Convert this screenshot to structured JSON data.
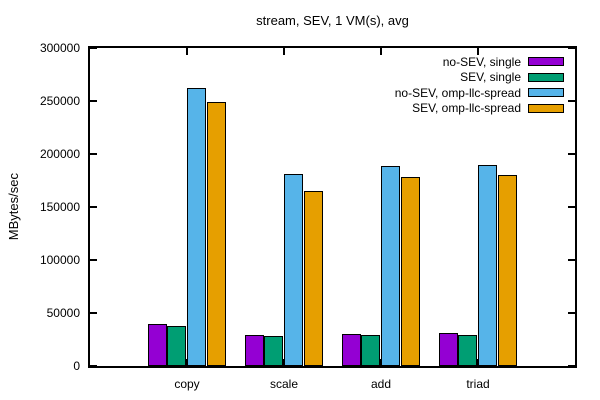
{
  "window": {
    "background": "#ffffff"
  },
  "chart_data": {
    "type": "bar",
    "title": "stream, SEV, 1 VM(s), avg",
    "xlabel": "",
    "ylabel": "MBytes/sec",
    "ylim": [
      0,
      300000
    ],
    "yticks": [
      0,
      50000,
      100000,
      150000,
      200000,
      250000,
      300000
    ],
    "ytick_labels": [
      "0",
      "50000",
      "100000",
      "150000",
      "200000",
      "250000",
      "300000"
    ],
    "grid": false,
    "legend_position": "top-right-inside",
    "categories": [
      "copy",
      "scale",
      "add",
      "triad"
    ],
    "series": [
      {
        "name": "no-SEV, single",
        "color": "#9400d3",
        "values": [
          40000,
          29000,
          30000,
          31000
        ]
      },
      {
        "name": "SEV, single",
        "color": "#009e73",
        "values": [
          38000,
          28000,
          29000,
          29000
        ]
      },
      {
        "name": "no-SEV, omp-llc-spread",
        "color": "#56b4e9",
        "values": [
          262000,
          181000,
          189000,
          190000
        ]
      },
      {
        "name": "SEV, omp-llc-spread",
        "color": "#e69f00",
        "values": [
          249000,
          165000,
          178000,
          180000
        ]
      }
    ],
    "colors": {
      "axis": "#000000",
      "text": "#000000",
      "background": "#ffffff"
    }
  }
}
